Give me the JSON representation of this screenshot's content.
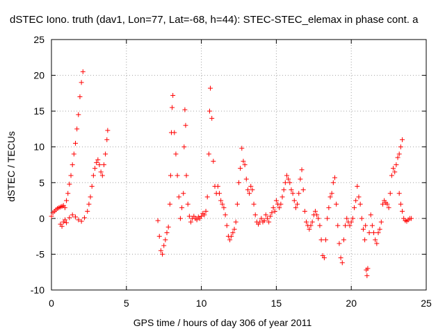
{
  "chart_data": {
    "type": "scatter",
    "title": "dSTEC Iono. truth (dav1, Lon=77, Lat=-68, h=44): STEC-STEC_elemax in phase cont. a",
    "xlabel": "GPS time / hours of day 306 of year 2011",
    "ylabel": "dSTEC  / TECUs",
    "xlim": [
      0,
      25
    ],
    "ylim": [
      -10,
      25
    ],
    "xticks": [
      0,
      5,
      10,
      15,
      20,
      25
    ],
    "yticks": [
      -10,
      -5,
      0,
      5,
      10,
      15,
      20,
      25
    ],
    "grid": true,
    "marker": "+",
    "color": "#ff0000",
    "series": [
      {
        "values": [
          [
            0.0,
            0.3
          ],
          [
            0.1,
            0.8
          ],
          [
            0.2,
            1.0
          ],
          [
            0.3,
            1.2
          ],
          [
            0.4,
            1.4
          ],
          [
            0.5,
            1.5
          ],
          [
            0.6,
            1.6
          ],
          [
            0.7,
            1.7
          ],
          [
            0.8,
            1.8
          ],
          [
            0.9,
            1.5
          ],
          [
            1.0,
            2.5
          ],
          [
            1.1,
            3.5
          ],
          [
            1.2,
            4.8
          ],
          [
            1.3,
            6.0
          ],
          [
            1.4,
            7.5
          ],
          [
            1.5,
            9.0
          ],
          [
            1.6,
            10.5
          ],
          [
            1.7,
            12.5
          ],
          [
            1.8,
            14.5
          ],
          [
            1.9,
            17.0
          ],
          [
            2.0,
            19.0
          ],
          [
            2.1,
            20.5
          ],
          [
            0.6,
            -0.8
          ],
          [
            0.7,
            -1.1
          ],
          [
            0.8,
            -0.5
          ],
          [
            0.9,
            -0.2
          ],
          [
            1.0,
            -0.6
          ],
          [
            1.2,
            0.1
          ],
          [
            1.4,
            0.5
          ],
          [
            1.6,
            0.2
          ],
          [
            1.8,
            -0.2
          ],
          [
            2.0,
            -0.4
          ],
          [
            2.2,
            0.1
          ],
          [
            2.4,
            1.0
          ],
          [
            2.5,
            2.0
          ],
          [
            2.6,
            3.0
          ],
          [
            2.7,
            4.5
          ],
          [
            2.8,
            6.0
          ],
          [
            2.9,
            7.0
          ],
          [
            3.0,
            7.8
          ],
          [
            3.1,
            8.2
          ],
          [
            3.2,
            7.5
          ],
          [
            3.3,
            6.5
          ],
          [
            3.4,
            6.0
          ],
          [
            3.5,
            7.5
          ],
          [
            3.6,
            9.0
          ],
          [
            3.7,
            11.0
          ],
          [
            3.75,
            12.3
          ],
          [
            7.1,
            -0.3
          ],
          [
            7.2,
            -2.5
          ],
          [
            7.3,
            -4.5
          ],
          [
            7.4,
            -5.0
          ],
          [
            7.5,
            -3.8
          ],
          [
            7.6,
            -3.0
          ],
          [
            7.7,
            -2.0
          ],
          [
            7.8,
            -1.2
          ],
          [
            7.9,
            2.0
          ],
          [
            7.95,
            6.0
          ],
          [
            8.0,
            12.0
          ],
          [
            8.05,
            15.5
          ],
          [
            8.1,
            17.2
          ],
          [
            8.2,
            12.0
          ],
          [
            8.3,
            9.0
          ],
          [
            8.4,
            6.0
          ],
          [
            8.5,
            3.0
          ],
          [
            8.6,
            0.0
          ],
          [
            8.7,
            1.5
          ],
          [
            8.8,
            3.5
          ],
          [
            8.85,
            10.0
          ],
          [
            8.9,
            15.2
          ],
          [
            8.95,
            13.0
          ],
          [
            9.0,
            6.0
          ],
          [
            9.1,
            2.0
          ],
          [
            9.2,
            0.3
          ],
          [
            9.3,
            -0.5
          ],
          [
            9.4,
            0.0
          ],
          [
            9.5,
            0.3
          ],
          [
            9.6,
            0.0
          ],
          [
            9.7,
            -0.2
          ],
          [
            9.8,
            0.2
          ],
          [
            9.9,
            0.0
          ],
          [
            10.0,
            0.3
          ],
          [
            10.1,
            0.7
          ],
          [
            10.2,
            0.5
          ],
          [
            10.3,
            1.0
          ],
          [
            10.4,
            3.0
          ],
          [
            10.5,
            9.0
          ],
          [
            10.55,
            15.0
          ],
          [
            10.6,
            18.2
          ],
          [
            10.7,
            14.0
          ],
          [
            10.8,
            8.0
          ],
          [
            10.9,
            4.5
          ],
          [
            11.0,
            3.5
          ],
          [
            11.1,
            4.5
          ],
          [
            11.2,
            3.5
          ],
          [
            11.3,
            2.5
          ],
          [
            11.4,
            2.0
          ],
          [
            11.5,
            1.5
          ],
          [
            11.6,
            0.5
          ],
          [
            11.7,
            -1.0
          ],
          [
            11.8,
            -2.5
          ],
          [
            11.9,
            -3.0
          ],
          [
            12.0,
            -2.5
          ],
          [
            12.1,
            -2.0
          ],
          [
            12.2,
            -1.5
          ],
          [
            12.3,
            -0.5
          ],
          [
            12.4,
            2.0
          ],
          [
            12.5,
            5.0
          ],
          [
            12.6,
            7.0
          ],
          [
            12.7,
            9.8
          ],
          [
            12.8,
            8.0
          ],
          [
            12.9,
            7.5
          ],
          [
            13.0,
            5.5
          ],
          [
            13.1,
            4.0
          ],
          [
            13.2,
            3.5
          ],
          [
            13.3,
            4.5
          ],
          [
            13.4,
            4.0
          ],
          [
            13.5,
            2.0
          ],
          [
            13.6,
            0.5
          ],
          [
            13.7,
            -0.5
          ],
          [
            13.8,
            -0.8
          ],
          [
            13.9,
            -0.5
          ],
          [
            14.0,
            0.0
          ],
          [
            14.1,
            -0.5
          ],
          [
            14.2,
            -0.3
          ],
          [
            14.3,
            0.5
          ],
          [
            14.4,
            0.0
          ],
          [
            14.5,
            -0.5
          ],
          [
            14.6,
            0.3
          ],
          [
            14.7,
            0.8
          ],
          [
            14.8,
            1.5
          ],
          [
            14.9,
            1.0
          ],
          [
            15.0,
            2.5
          ],
          [
            15.1,
            2.0
          ],
          [
            15.2,
            1.5
          ],
          [
            15.3,
            2.0
          ],
          [
            15.4,
            3.0
          ],
          [
            15.5,
            4.0
          ],
          [
            15.6,
            5.0
          ],
          [
            15.7,
            6.0
          ],
          [
            15.8,
            5.5
          ],
          [
            15.9,
            5.0
          ],
          [
            16.0,
            4.0
          ],
          [
            16.1,
            3.5
          ],
          [
            16.2,
            2.5
          ],
          [
            16.3,
            1.5
          ],
          [
            16.4,
            2.0
          ],
          [
            16.5,
            3.5
          ],
          [
            16.6,
            5.5
          ],
          [
            16.7,
            6.8
          ],
          [
            16.8,
            4.0
          ],
          [
            16.9,
            1.0
          ],
          [
            17.0,
            -0.5
          ],
          [
            17.1,
            -1.0
          ],
          [
            17.2,
            -1.5
          ],
          [
            17.3,
            -1.0
          ],
          [
            17.4,
            -0.5
          ],
          [
            17.5,
            0.5
          ],
          [
            17.6,
            1.0
          ],
          [
            17.7,
            0.5
          ],
          [
            17.8,
            0.0
          ],
          [
            17.9,
            -1.0
          ],
          [
            18.0,
            -3.0
          ],
          [
            18.1,
            -5.2
          ],
          [
            18.2,
            -5.5
          ],
          [
            18.3,
            -3.0
          ],
          [
            18.4,
            0.0
          ],
          [
            18.5,
            1.5
          ],
          [
            18.6,
            3.0
          ],
          [
            18.7,
            3.5
          ],
          [
            18.8,
            5.0
          ],
          [
            18.9,
            5.7
          ],
          [
            19.0,
            2.0
          ],
          [
            19.1,
            -1.0
          ],
          [
            19.2,
            -3.5
          ],
          [
            19.3,
            -5.5
          ],
          [
            19.4,
            -6.2
          ],
          [
            19.5,
            -3.0
          ],
          [
            19.6,
            -1.0
          ],
          [
            19.7,
            0.0
          ],
          [
            19.8,
            -0.5
          ],
          [
            19.9,
            -1.0
          ],
          [
            20.0,
            -0.5
          ],
          [
            20.1,
            0.0
          ],
          [
            20.2,
            1.5
          ],
          [
            20.3,
            2.5
          ],
          [
            20.4,
            4.5
          ],
          [
            20.5,
            3.0
          ],
          [
            20.6,
            2.0
          ],
          [
            20.7,
            0.0
          ],
          [
            20.8,
            -1.5
          ],
          [
            20.9,
            -3.0
          ],
          [
            20.95,
            -1.0
          ],
          [
            21.0,
            -7.2
          ],
          [
            21.05,
            -8.0
          ],
          [
            21.1,
            -7.0
          ],
          [
            21.2,
            -2.0
          ],
          [
            21.3,
            0.5
          ],
          [
            21.4,
            -1.0
          ],
          [
            21.5,
            -2.0
          ],
          [
            21.6,
            -3.0
          ],
          [
            21.7,
            -3.5
          ],
          [
            21.8,
            -2.0
          ],
          [
            21.9,
            -1.5
          ],
          [
            22.0,
            -0.5
          ],
          [
            22.1,
            2.0
          ],
          [
            22.2,
            2.5
          ],
          [
            22.3,
            2.2
          ],
          [
            22.4,
            2.0
          ],
          [
            22.5,
            1.5
          ],
          [
            22.6,
            3.5
          ],
          [
            22.7,
            6.0
          ],
          [
            22.8,
            7.0
          ],
          [
            22.9,
            6.5
          ],
          [
            23.0,
            7.5
          ],
          [
            23.1,
            8.5
          ],
          [
            23.2,
            9.0
          ],
          [
            23.3,
            10.0
          ],
          [
            23.4,
            11.0
          ],
          [
            23.2,
            3.5
          ],
          [
            23.3,
            2.0
          ],
          [
            23.4,
            1.0
          ],
          [
            23.5,
            0.0
          ],
          [
            23.6,
            -0.3
          ],
          [
            23.7,
            -0.4
          ],
          [
            23.8,
            -0.2
          ],
          [
            23.9,
            0.0
          ],
          [
            24.0,
            0.0
          ]
        ]
      }
    ]
  }
}
